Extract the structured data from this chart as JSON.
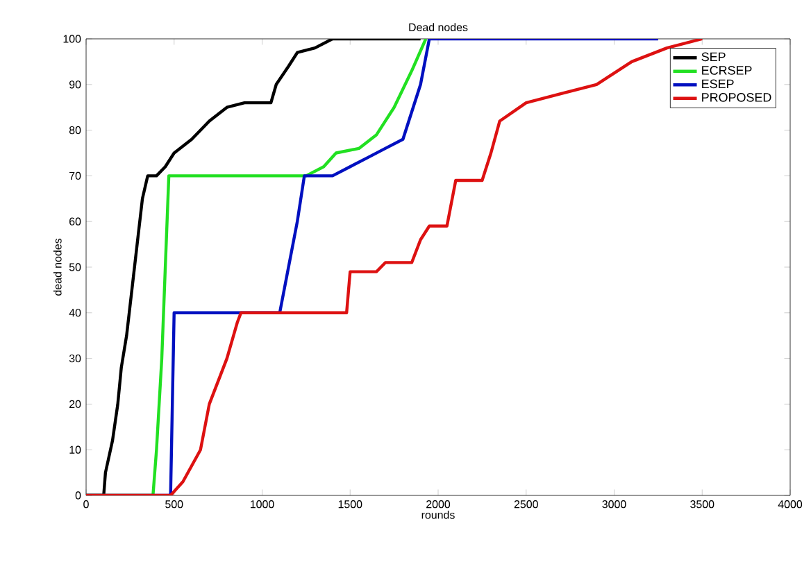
{
  "chart_data": {
    "type": "line",
    "title": "Dead nodes",
    "xlabel": "rounds",
    "ylabel": "dead nodes",
    "xlim": [
      0,
      4000
    ],
    "ylim": [
      0,
      100
    ],
    "xticks": [
      0,
      500,
      1000,
      1500,
      2000,
      2500,
      3000,
      3500,
      4000
    ],
    "yticks": [
      0,
      10,
      20,
      30,
      40,
      50,
      60,
      70,
      80,
      90,
      100
    ],
    "legend": "top right",
    "grid": false,
    "line_style": "solid",
    "marker": "none",
    "series": [
      {
        "name": "SEP",
        "color": "#000000",
        "x": [
          0,
          100,
          110,
          150,
          180,
          200,
          230,
          260,
          290,
          320,
          350,
          400,
          450,
          500,
          600,
          700,
          800,
          900,
          1050,
          1080,
          1150,
          1200,
          1300,
          1400,
          1900
        ],
        "values": [
          0,
          0,
          5,
          12,
          20,
          28,
          35,
          45,
          55,
          65,
          70,
          70,
          72,
          75,
          78,
          82,
          85,
          86,
          86,
          90,
          94,
          97,
          98,
          100,
          100
        ]
      },
      {
        "name": "ECRSEP",
        "color": "#22e022",
        "x": [
          0,
          380,
          400,
          430,
          450,
          470,
          1250,
          1350,
          1420,
          1550,
          1650,
          1750,
          1850,
          1930
        ],
        "values": [
          0,
          0,
          10,
          30,
          50,
          70,
          70,
          72,
          75,
          76,
          79,
          85,
          93,
          100
        ]
      },
      {
        "name": "ESEP",
        "color": "#0010c0",
        "x": [
          0,
          480,
          490,
          500,
          1100,
          1150,
          1200,
          1240,
          1400,
          1500,
          1600,
          1700,
          1800,
          1900,
          1950,
          3250
        ],
        "values": [
          0,
          0,
          20,
          40,
          40,
          50,
          60,
          70,
          70,
          72,
          74,
          76,
          78,
          90,
          100,
          100
        ]
      },
      {
        "name": "PROPOSED",
        "color": "#dd1111",
        "x": [
          0,
          480,
          550,
          650,
          700,
          800,
          860,
          880,
          1480,
          1500,
          1650,
          1700,
          1850,
          1900,
          1950,
          2050,
          2100,
          2250,
          2300,
          2350,
          2500,
          2700,
          2900,
          3100,
          3300,
          3500
        ],
        "values": [
          0,
          0,
          3,
          10,
          20,
          30,
          38,
          40,
          40,
          49,
          49,
          51,
          51,
          56,
          59,
          59,
          69,
          69,
          75,
          82,
          86,
          88,
          90,
          95,
          98,
          100
        ]
      }
    ]
  }
}
